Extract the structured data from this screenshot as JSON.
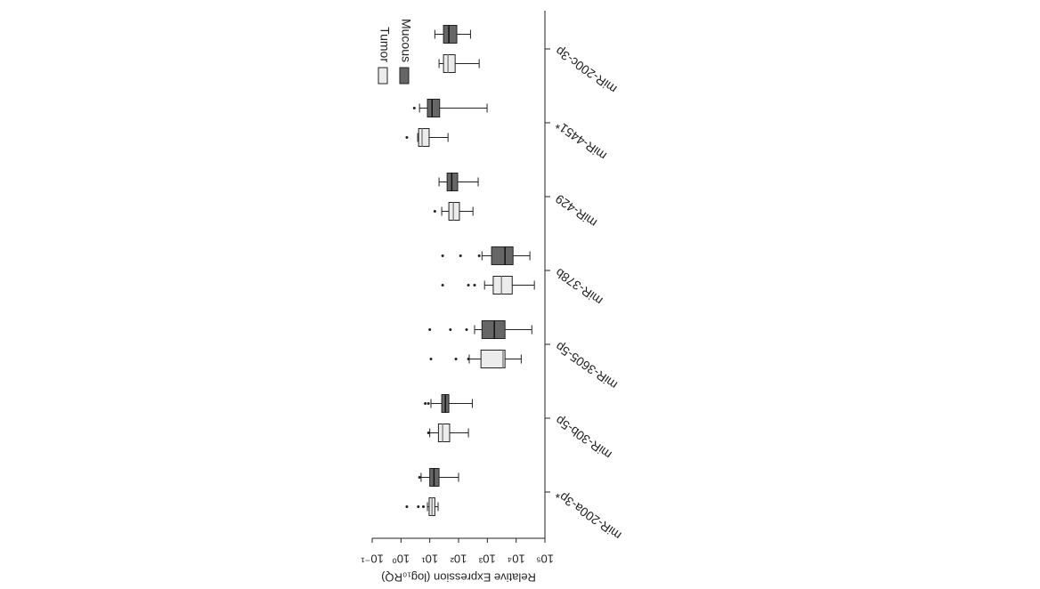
{
  "chart_data": {
    "type": "boxplot",
    "orientation": "horizontal",
    "rotated_180": true,
    "axis_label": "Relative Expression (log₁₀RQ)",
    "categories": [
      "miR-200a-3p*",
      "miR-30b-5p",
      "miR-3605-5p",
      "miR-378b",
      "miR-429",
      "miR-4451*",
      "miR-200c-3p"
    ],
    "xscale": "log",
    "xlim": [
      0.1,
      100000
    ],
    "xticks": [
      {
        "value": 0.1,
        "label": "10⁻¹"
      },
      {
        "value": 1,
        "label": "10⁰"
      },
      {
        "value": 10,
        "label": "10¹"
      },
      {
        "value": 100,
        "label": "10²"
      },
      {
        "value": 1000,
        "label": "10³"
      },
      {
        "value": 10000,
        "label": "10⁴"
      },
      {
        "value": 100000,
        "label": "10⁵"
      }
    ],
    "series": [
      {
        "name": "Tumor",
        "color": "#ececec",
        "boxes": [
          {
            "min": 8.3,
            "q1": 9.5,
            "median": 12,
            "q3": 15,
            "max": 19.5,
            "outliers": [
              1.6,
              4,
              6
            ]
          },
          {
            "min": 10,
            "q1": 20,
            "median": 28,
            "q3": 49,
            "max": 220,
            "outliers": [
              9
            ]
          },
          {
            "min": 235,
            "q1": 600,
            "median": 3500,
            "q3": 4100,
            "max": 15000,
            "outliers": [
              11,
              81,
              220
            ]
          },
          {
            "min": 800,
            "q1": 1600,
            "median": 3100,
            "q3": 7300,
            "max": 43000,
            "outliers": [
              28,
              220,
              360
            ]
          },
          {
            "min": 26,
            "q1": 46,
            "median": 66,
            "q3": 107,
            "max": 316,
            "outliers": [
              15
            ]
          },
          {
            "min": 3.8,
            "q1": 4.1,
            "median": 5.4,
            "q3": 9.5,
            "max": 43,
            "outliers": [
              1.6
            ]
          },
          {
            "min": 21,
            "q1": 30,
            "median": 43,
            "q3": 76,
            "max": 520,
            "outliers": []
          }
        ]
      },
      {
        "name": "Mucous",
        "color": "#666666",
        "boxes": [
          {
            "min": 5,
            "q1": 10,
            "median": 14,
            "q3": 21,
            "max": 100,
            "outliers": [
              4.4
            ]
          },
          {
            "min": 11,
            "q1": 26,
            "median": 35,
            "q3": 46,
            "max": 300,
            "outliers": [
              7,
              9
            ]
          },
          {
            "min": 360,
            "q1": 650,
            "median": 1750,
            "q3": 4100,
            "max": 35000,
            "outliers": [
              10,
              52,
              190
            ]
          },
          {
            "min": 650,
            "q1": 1400,
            "median": 4100,
            "q3": 7800,
            "max": 30000,
            "outliers": [
              28,
              117,
              520
            ]
          },
          {
            "min": 21,
            "q1": 40,
            "median": 58,
            "q3": 93,
            "max": 480,
            "outliers": []
          },
          {
            "min": 4.4,
            "q1": 8.3,
            "median": 12,
            "q3": 22,
            "max": 980,
            "outliers": [
              2.9
            ]
          },
          {
            "min": 15,
            "q1": 30,
            "median": 46,
            "q3": 87,
            "max": 260,
            "outliers": []
          }
        ]
      }
    ]
  }
}
